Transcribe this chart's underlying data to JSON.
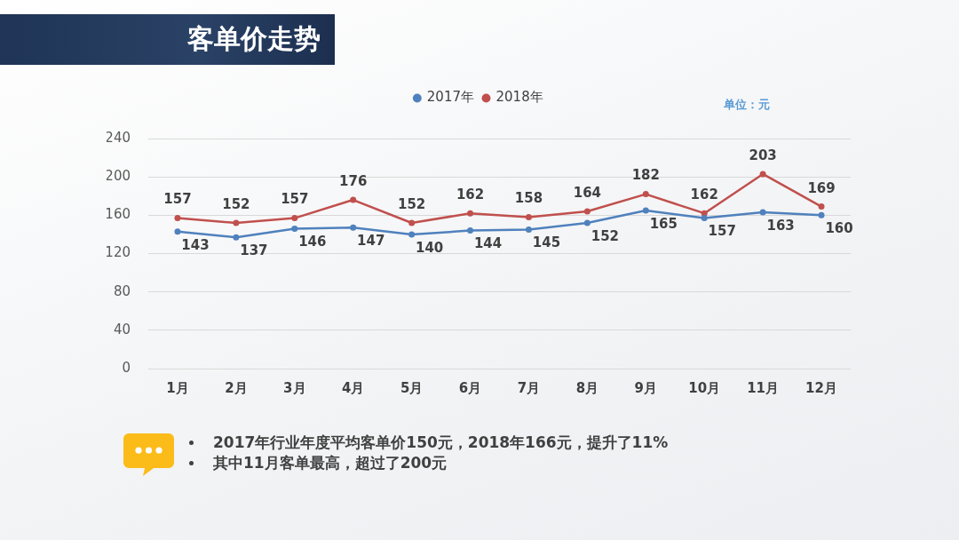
{
  "chart_data": {
    "type": "line",
    "title": "客单价走势",
    "categories": [
      "1月",
      "2月",
      "3月",
      "4月",
      "5月",
      "6月",
      "7月",
      "8月",
      "9月",
      "10月",
      "11月",
      "12月"
    ],
    "series": [
      {
        "name": "2017年",
        "color": "#4f81bd",
        "values": [
          143,
          137,
          146,
          147,
          140,
          144,
          145,
          152,
          165,
          157,
          163,
          160
        ]
      },
      {
        "name": "2018年",
        "color": "#c0504d",
        "values": [
          157,
          152,
          157,
          176,
          152,
          162,
          158,
          164,
          182,
          162,
          203,
          169
        ]
      }
    ],
    "ylim": [
      0,
      240
    ],
    "yticks": [
      0,
      40,
      80,
      120,
      160,
      200,
      240
    ],
    "grid": "y",
    "legend": "top",
    "marker": "circle",
    "line_style": "solid",
    "data_labels": true,
    "annotations": [
      "单位：元",
      "2017年行业年度平均客单价150元，2018年166元，提升了11%",
      "其中11月客单最高，超过了200元"
    ]
  }
}
